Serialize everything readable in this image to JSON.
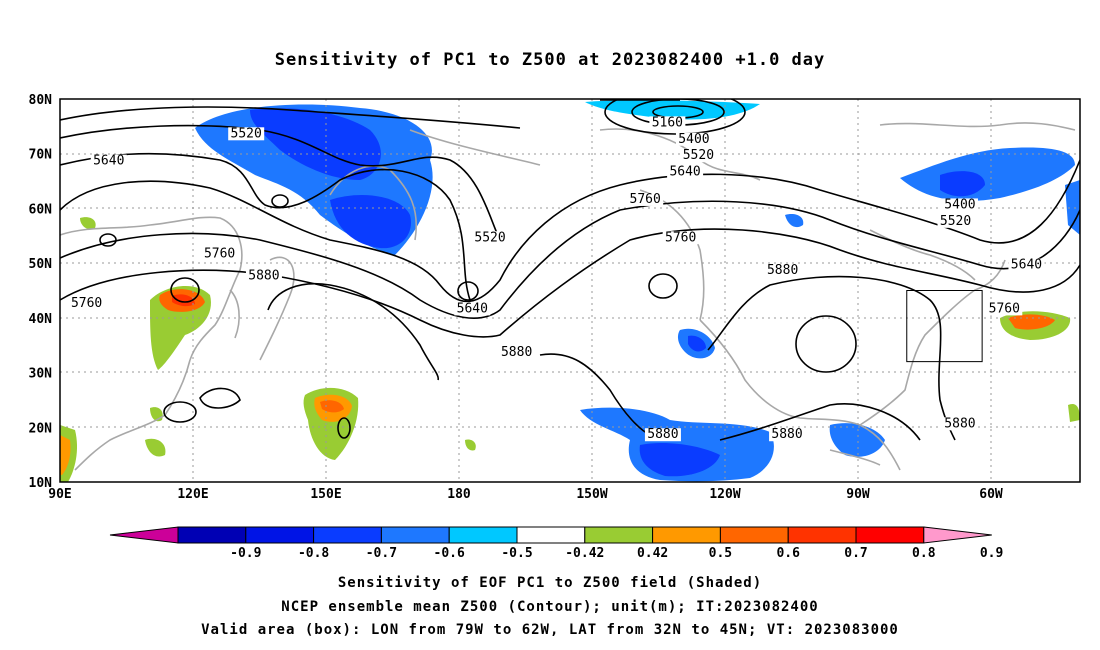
{
  "title": "Sensitivity of PC1 to Z500 at 2023082400 +1.0 day",
  "map": {
    "lon_range": [
      90,
      270
    ],
    "lat_range": [
      10,
      80
    ],
    "lon_ticks": [
      {
        "lon": 90,
        "label": "90E"
      },
      {
        "lon": 120,
        "label": "120E"
      },
      {
        "lon": 150,
        "label": "150E"
      },
      {
        "lon": 180,
        "label": "180"
      },
      {
        "lon": 210,
        "label": "150W"
      },
      {
        "lon": 240,
        "label": "120W"
      },
      {
        "lon": 270,
        "label": "90W"
      },
      {
        "lon": 300,
        "label": "60W"
      }
    ],
    "lat_ticks": [
      {
        "lat": 10,
        "label": "10N"
      },
      {
        "lat": 20,
        "label": "20N"
      },
      {
        "lat": 30,
        "label": "30N"
      },
      {
        "lat": 40,
        "label": "40N"
      },
      {
        "lat": 50,
        "label": "50N"
      },
      {
        "lat": 60,
        "label": "60N"
      },
      {
        "lat": 70,
        "label": "70N"
      },
      {
        "lat": 80,
        "label": "80N"
      }
    ],
    "contour_labels": [
      {
        "text": "5520",
        "lon": 132,
        "lat": 73
      },
      {
        "text": "5640",
        "lon": 101,
        "lat": 68
      },
      {
        "text": "5160",
        "lon": 227,
        "lat": 75
      },
      {
        "text": "5400",
        "lon": 233,
        "lat": 72
      },
      {
        "text": "5520",
        "lon": 234,
        "lat": 69
      },
      {
        "text": "5640",
        "lon": 231,
        "lat": 66
      },
      {
        "text": "5760",
        "lon": 222,
        "lat": 61
      },
      {
        "text": "5760",
        "lon": 230,
        "lat": 54
      },
      {
        "text": "5520",
        "lon": 187,
        "lat": 54
      },
      {
        "text": "5400",
        "lon": 293,
        "lat": 60
      },
      {
        "text": "5520",
        "lon": 292,
        "lat": 57
      },
      {
        "text": "5640",
        "lon": 308,
        "lat": 49
      },
      {
        "text": "5760",
        "lon": 126,
        "lat": 51
      },
      {
        "text": "5880",
        "lon": 136,
        "lat": 47
      },
      {
        "text": "5760",
        "lon": 96,
        "lat": 42
      },
      {
        "text": "5640",
        "lon": 183,
        "lat": 41
      },
      {
        "text": "5880",
        "lon": 253,
        "lat": 48
      },
      {
        "text": "5760",
        "lon": 303,
        "lat": 41
      },
      {
        "text": "5880",
        "lon": 193,
        "lat": 33
      },
      {
        "text": "5880",
        "lon": 226,
        "lat": 18
      },
      {
        "text": "5880",
        "lon": 254,
        "lat": 18
      },
      {
        "text": "5880",
        "lon": 293,
        "lat": 20
      }
    ],
    "valid_box": {
      "lon_min": 281,
      "lon_max": 298,
      "lat_min": 32,
      "lat_max": 45
    }
  },
  "colorbar": {
    "labels": [
      "-0.9",
      "-0.8",
      "-0.7",
      "-0.6",
      "-0.5",
      "-0.42",
      "0.42",
      "0.5",
      "0.6",
      "0.7",
      "0.8",
      "0.9"
    ],
    "colors": [
      "#cc0099",
      "#0000b4",
      "#0014e6",
      "#0a3cff",
      "#1e78ff",
      "#00c8ff",
      "#ffffff",
      "#99cc33",
      "#ff9900",
      "#ff6600",
      "#ff3300",
      "#ff0000",
      "#ff99cc"
    ]
  },
  "captions": [
    "Sensitivity of EOF PC1 to Z500 field (Shaded)",
    "NCEP ensemble mean Z500 (Contour); unit(m); IT:2023082400",
    "Valid area (box): LON from 79W to 62W, LAT from 32N to 45N; VT: 2023083000"
  ]
}
